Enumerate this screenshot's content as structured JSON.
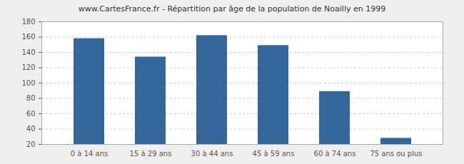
{
  "chart_data": {
    "type": "bar",
    "title": "www.CartesFrance.fr - Répartition par âge de la population de Noailly en 1999",
    "categories": [
      "0 à 14 ans",
      "15 à 29 ans",
      "30 à 44 ans",
      "45 à 59 ans",
      "60 à 74 ans",
      "75 ans ou plus"
    ],
    "values": [
      158,
      134,
      162,
      149,
      89,
      28
    ],
    "color": "#336699",
    "ylim": [
      20,
      180
    ],
    "yticks": [
      20,
      40,
      60,
      80,
      100,
      120,
      140,
      160,
      180
    ],
    "grid": true
  }
}
